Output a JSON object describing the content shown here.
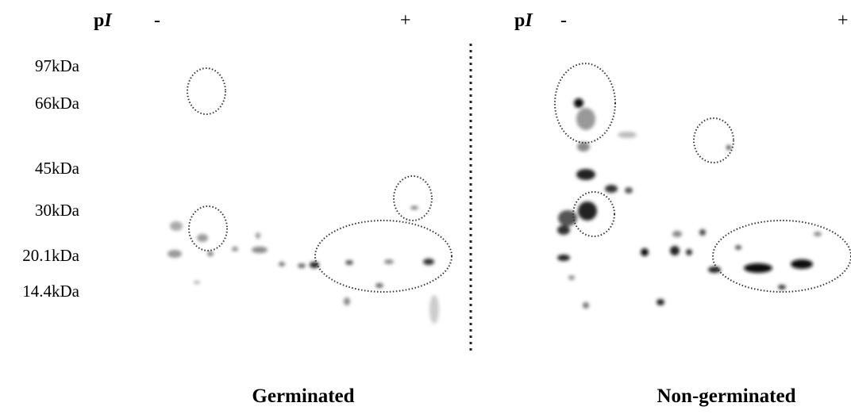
{
  "left_panel": {
    "pi_label": [
      "p",
      "I"
    ],
    "minus": "-",
    "plus": "+",
    "caption": "Germinated"
  },
  "right_panel": {
    "pi_label": [
      "p",
      "I"
    ],
    "minus": "-",
    "plus": "+",
    "caption": "Non-germinated"
  },
  "mw_labels": [
    "97kDa",
    "66kDa",
    "45kDa",
    "30kDa",
    "20.1kDa",
    "14.4kDa"
  ]
}
